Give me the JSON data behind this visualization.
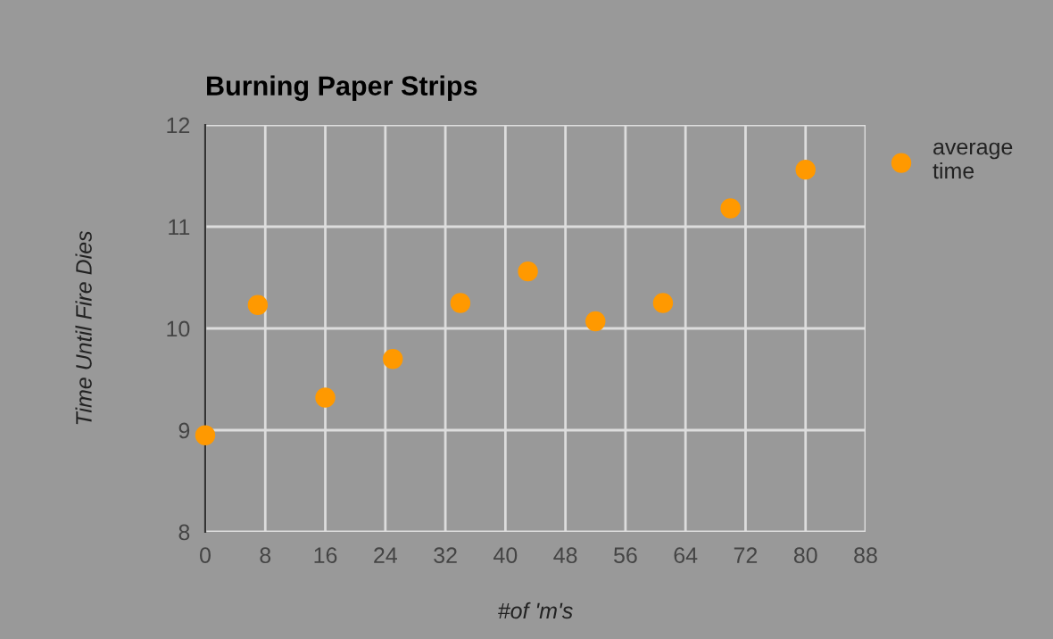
{
  "chart_data": {
    "type": "scatter",
    "title": "Burning Paper Strips",
    "xlabel": "#of 'm's",
    "ylabel": "Time Until Fire Dies",
    "series": [
      {
        "name": "average time",
        "color": "#ff9900",
        "x": [
          0,
          7,
          16,
          25,
          34,
          43,
          52,
          61,
          70,
          80
        ],
        "values": [
          8.95,
          10.23,
          9.32,
          9.7,
          10.25,
          10.56,
          10.07,
          10.25,
          11.18,
          11.56
        ]
      }
    ],
    "xlim": [
      0,
      88
    ],
    "xticks": [
      0,
      8,
      16,
      24,
      32,
      40,
      48,
      56,
      64,
      72,
      80,
      88
    ],
    "ylim": [
      8,
      12
    ],
    "yticks": [
      8,
      9,
      10,
      11,
      12
    ],
    "grid": true,
    "legend": "right",
    "marker": "circle"
  }
}
